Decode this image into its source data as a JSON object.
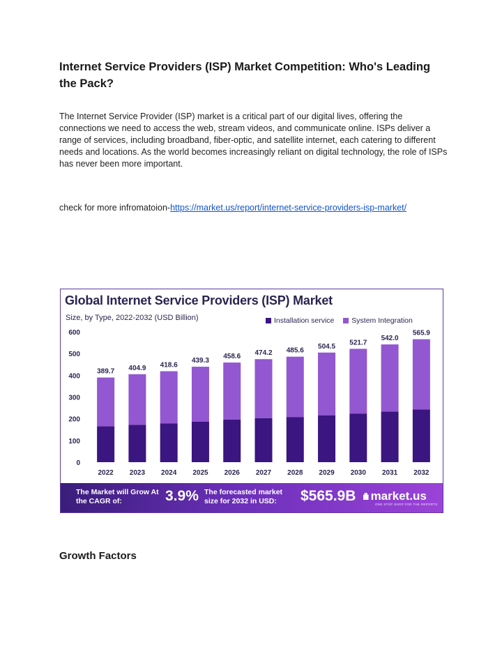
{
  "document": {
    "title": "Internet Service Providers (ISP) Market Competition: Who's Leading the Pack?",
    "intro": "The Internet Service Provider (ISP) market is a critical part of our digital lives, offering the connections we need to access the web, stream videos, and communicate online. ISPs deliver a range of services, including broadband, fiber-optic, and satellite internet, each catering to different needs and locations. As the world becomes increasingly reliant on digital technology, the role of ISPs has never been more important.",
    "more_prefix": "check for more infromatoion-",
    "more_link": "https://market.us/report/internet-service-providers-isp-market/",
    "section_heading": "Growth Factors"
  },
  "figure": {
    "banner_left": "The Market will Grow At the CAGR of:",
    "cagr": "3.9%",
    "banner_mid": "The forecasted market size for 2032 in USD:",
    "forecast_value": "$565.9B",
    "logo_text": "market.us",
    "logo_tagline": "ONE STOP SHOP FOR THE REPORTS"
  },
  "chart_data": {
    "type": "bar",
    "stacked": true,
    "title": "Global Internet Service Providers (ISP) Market",
    "subtitle": "Size, by Type, 2022-2032 (USD Billion)",
    "legend_placement": "top-right",
    "categories": [
      "2022",
      "2023",
      "2024",
      "2025",
      "2026",
      "2027",
      "2028",
      "2029",
      "2030",
      "2031",
      "2032"
    ],
    "totals": [
      389.7,
      404.9,
      418.6,
      439.3,
      458.6,
      474.2,
      485.6,
      504.5,
      521.7,
      542.0,
      565.9
    ],
    "series": [
      {
        "name": "Installation service",
        "color": "#3b1580",
        "values": [
          165,
          172,
          178,
          187,
          196,
          203,
          208,
          216,
          224,
          233,
          243
        ]
      },
      {
        "name": "System Integration",
        "color": "#9257d1",
        "values": [
          224.7,
          232.9,
          240.6,
          252.3,
          262.6,
          271.2,
          277.6,
          288.5,
          297.7,
          309.0,
          322.9
        ]
      }
    ],
    "yticks": [
      0,
      100,
      200,
      300,
      400,
      500,
      600
    ],
    "ylim": [
      0,
      600
    ],
    "grid": false
  }
}
